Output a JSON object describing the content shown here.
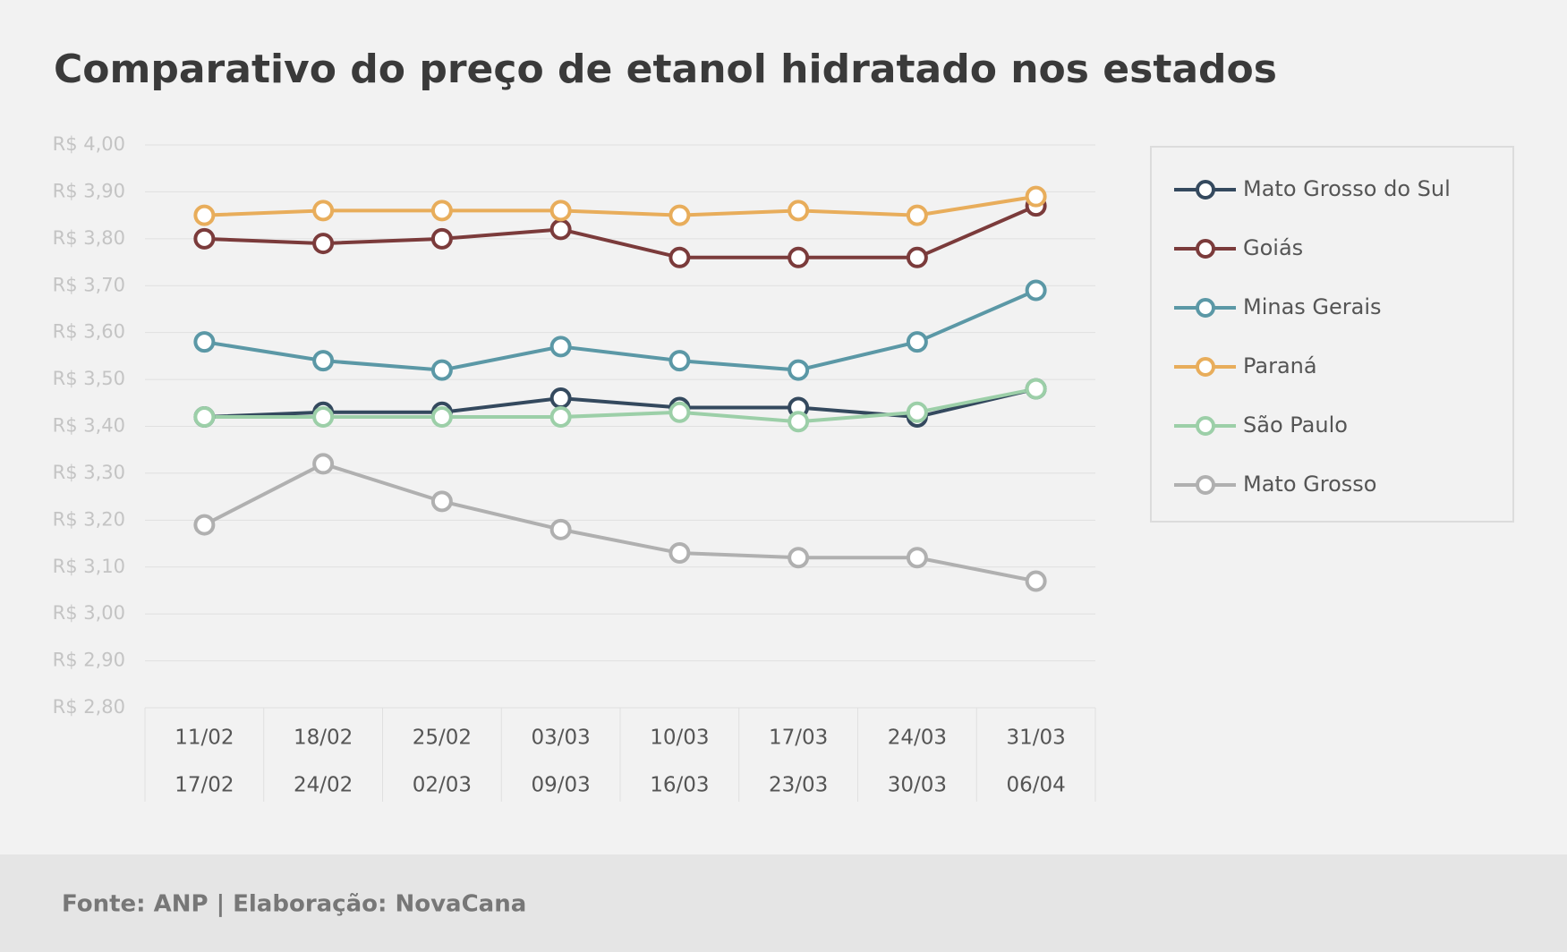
{
  "chart_data": {
    "type": "line",
    "title": "Comparativo do preço de etanol hidratado nos estados",
    "source": "Fonte: ANP | Elaboração: NovaCana",
    "categories": [
      [
        "11/02",
        "17/02"
      ],
      [
        "18/02",
        "24/02"
      ],
      [
        "25/02",
        "02/03"
      ],
      [
        "03/03",
        "09/03"
      ],
      [
        "10/03",
        "16/03"
      ],
      [
        "17/03",
        "23/03"
      ],
      [
        "24/03",
        "30/03"
      ],
      [
        "31/03",
        "06/04"
      ]
    ],
    "series": [
      {
        "name": "Mato Grosso do Sul",
        "color": "#34495e",
        "values": [
          3.42,
          3.43,
          3.43,
          3.46,
          3.44,
          3.44,
          3.42,
          3.48
        ]
      },
      {
        "name": "Goiás",
        "color": "#7b3b3b",
        "values": [
          3.8,
          3.79,
          3.8,
          3.82,
          3.76,
          3.76,
          3.76,
          3.87
        ]
      },
      {
        "name": "Minas Gerais",
        "color": "#5b98a6",
        "values": [
          3.58,
          3.54,
          3.52,
          3.57,
          3.54,
          3.52,
          3.58,
          3.69
        ]
      },
      {
        "name": "Paraná",
        "color": "#e8ad5b",
        "values": [
          3.85,
          3.86,
          3.86,
          3.86,
          3.85,
          3.86,
          3.85,
          3.89
        ]
      },
      {
        "name": "São Paulo",
        "color": "#9ccfa8",
        "values": [
          3.42,
          3.42,
          3.42,
          3.42,
          3.43,
          3.41,
          3.43,
          3.48
        ]
      },
      {
        "name": "Mato Grosso",
        "color": "#b0b0b0",
        "values": [
          3.19,
          3.32,
          3.24,
          3.18,
          3.13,
          3.12,
          3.12,
          3.07
        ]
      }
    ],
    "ylim": [
      2.8,
      4.0
    ],
    "yticks": [
      {
        "value": 2.8,
        "label": "R$ 2,80"
      },
      {
        "value": 2.9,
        "label": "R$ 2,90"
      },
      {
        "value": 3.0,
        "label": "R$ 3,00"
      },
      {
        "value": 3.1,
        "label": "R$ 3,10"
      },
      {
        "value": 3.2,
        "label": "R$ 3,20"
      },
      {
        "value": 3.3,
        "label": "R$ 3,30"
      },
      {
        "value": 3.4,
        "label": "R$ 3,40"
      },
      {
        "value": 3.5,
        "label": "R$ 3,50"
      },
      {
        "value": 3.6,
        "label": "R$ 3,60"
      },
      {
        "value": 3.7,
        "label": "R$ 3,70"
      },
      {
        "value": 3.8,
        "label": "R$ 3,80"
      },
      {
        "value": 3.9,
        "label": "R$ 3,90"
      },
      {
        "value": 4.0,
        "label": "R$ 4,00"
      }
    ],
    "grid": true,
    "legend": "right"
  }
}
